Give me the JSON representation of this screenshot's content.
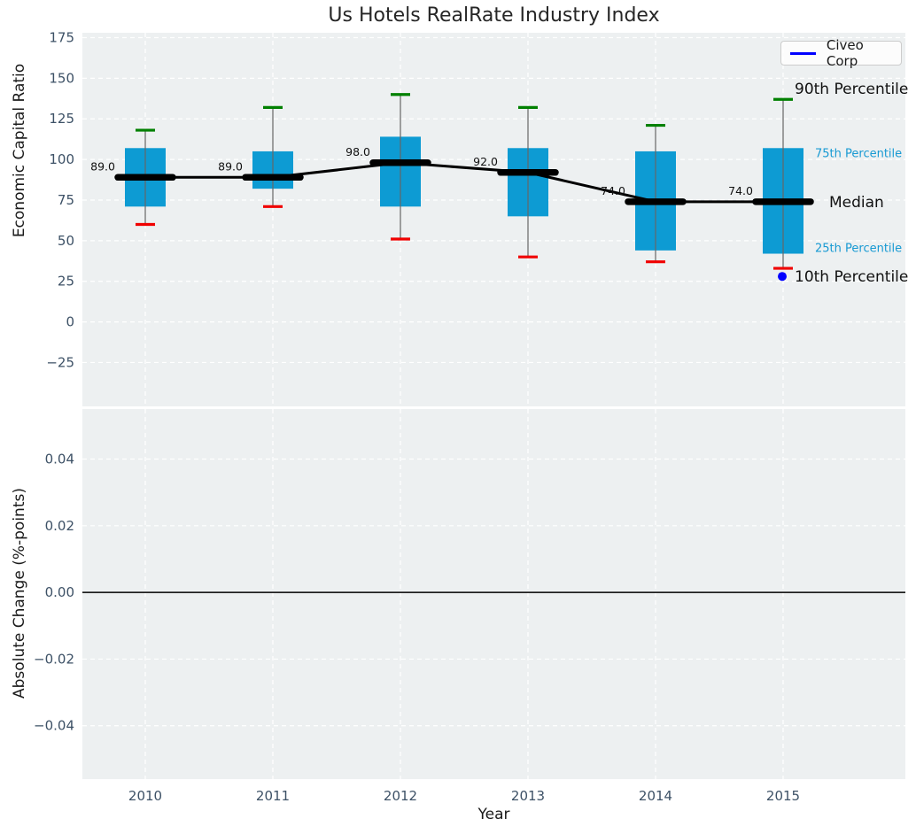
{
  "title": "Us Hotels RealRate Industry Index",
  "legend": {
    "items": [
      {
        "label": "Civeo Corp",
        "color": "#0000ff"
      }
    ]
  },
  "annotations": {
    "p90": "90th Percentile",
    "p75": "75th Percentile",
    "median": "Median",
    "p25": "25th Percentile",
    "p10": "10th Percentile"
  },
  "colors": {
    "figure_bg": "#ffffff",
    "panel_bg": "#edf0f1",
    "grid": "#ffffff",
    "box_fill": "#0d9bd3",
    "whisker": "#666666",
    "cap_top": "#008000",
    "cap_bottom": "#f00000",
    "median_line": "#000000",
    "connector_line": "#000000",
    "zero_line": "#000000",
    "civeo_marker": "#0000ff",
    "tick_text": "#3d5166",
    "title_text": "#262626",
    "annotation_cyan": "#189ad3",
    "annotation_black": "#111111"
  },
  "chart_data": [
    {
      "type": "boxplot",
      "panel": "top",
      "title": "Us Hotels RealRate Industry Index",
      "ylabel": "Economic Capital Ratio",
      "categories": [
        "2010",
        "2011",
        "2012",
        "2013",
        "2014",
        "2015"
      ],
      "ytick_values": [
        175,
        150,
        125,
        100,
        75,
        50,
        25,
        0,
        -25
      ],
      "ytick_labels": [
        "175",
        "150",
        "125",
        "100",
        "75",
        "50",
        "25",
        "0",
        "−25"
      ],
      "ylim": [
        -52,
        178
      ],
      "grid": true,
      "legend_entries": [
        "Civeo Corp"
      ],
      "boxes": [
        {
          "year": "2010",
          "whisker_high": 118,
          "q3": 107,
          "median": 89,
          "q1": 71,
          "whisker_low": 60,
          "median_label": "89.0"
        },
        {
          "year": "2011",
          "whisker_high": 132,
          "q3": 105,
          "median": 89,
          "q1": 82,
          "whisker_low": 71,
          "median_label": "89.0"
        },
        {
          "year": "2012",
          "whisker_high": 140,
          "q3": 114,
          "median": 98,
          "q1": 71,
          "whisker_low": 51,
          "median_label": "98.0"
        },
        {
          "year": "2013",
          "whisker_high": 132,
          "q3": 107,
          "median": 92,
          "q1": 65,
          "whisker_low": 40,
          "median_label": "92.0"
        },
        {
          "year": "2014",
          "whisker_high": 121,
          "q3": 105,
          "median": 74,
          "q1": 44,
          "whisker_low": 37,
          "median_label": "74.0"
        },
        {
          "year": "2015",
          "whisker_high": 137,
          "q3": 107,
          "median": 74,
          "q1": 42,
          "whisker_low": 33,
          "median_label": "74.0"
        }
      ],
      "median_series": {
        "name": "Median",
        "values": [
          89,
          89,
          98,
          92,
          74,
          74
        ]
      },
      "civeo_corp_point": {
        "x": "2015",
        "y": 28
      }
    },
    {
      "type": "line",
      "panel": "bottom",
      "ylabel": "Absolute Change (%-points)",
      "xlabel": "Year",
      "categories": [
        "2010",
        "2011",
        "2012",
        "2013",
        "2014",
        "2015"
      ],
      "ytick_values": [
        0.04,
        0.02,
        0,
        -0.02,
        -0.04
      ],
      "ytick_labels": [
        "0.04",
        "0.02",
        "0.00",
        "−0.02",
        "−0.04"
      ],
      "ylim": [
        -0.056,
        0.055
      ],
      "grid": true,
      "zero_line": 0.0,
      "series": []
    }
  ]
}
